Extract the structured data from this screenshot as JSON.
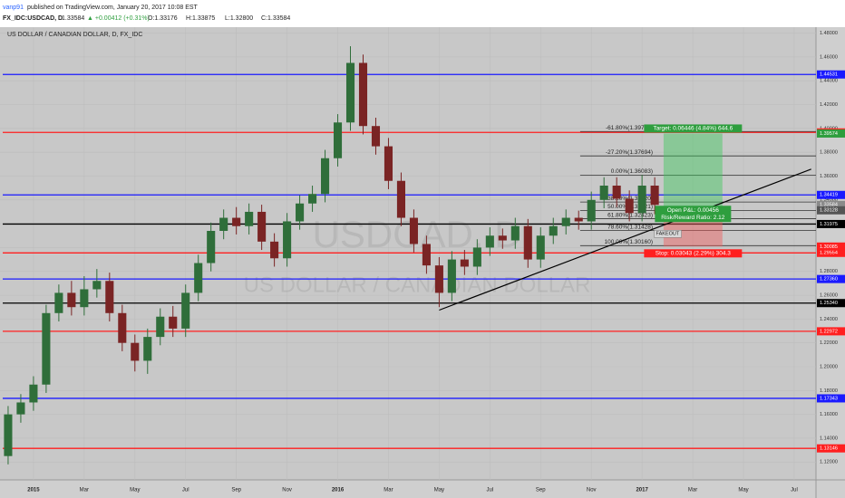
{
  "header": {
    "author": "vanp91",
    "published": "published on TradingView.com, January 20, 2017 10:08 EST",
    "symbol": "FX_IDC:USDCAD, D",
    "last": "1.33584",
    "change": "▲ +0.00412 (+0.31%)",
    "ohlc": [
      "O:1.33176",
      "H:1.33875",
      "L:1.32800",
      "C:1.33584"
    ]
  },
  "chart_data": {
    "type": "candlestick",
    "title": "US DOLLAR / CANADIAN DOLLAR, D, FX_IDC",
    "watermark": [
      "USDCAD, D",
      "US DOLLAR / CANADIAN DOLLAR"
    ],
    "up_color": "#2f6e3a",
    "down_color": "#7a2424",
    "grid": true,
    "candles": {
      "x": [
        -1,
        -0.5,
        0,
        0.5,
        1,
        1.5,
        2,
        2.5,
        3,
        3.5,
        4,
        4.5,
        5,
        5.5,
        6,
        6.5,
        7,
        7.5,
        8,
        8.5,
        9,
        9.5,
        10,
        10.5,
        11,
        11.5,
        12,
        12.5,
        13,
        13.5,
        14,
        14.5,
        15,
        15.5,
        16,
        16.5,
        17,
        17.5,
        18,
        18.5,
        19,
        19.5,
        20,
        20.5,
        21,
        21.5,
        22,
        22.5,
        23,
        23.5,
        24,
        24.5
      ],
      "open": [
        1.125,
        1.16,
        1.17,
        1.185,
        1.245,
        1.262,
        1.25,
        1.265,
        1.272,
        1.245,
        1.22,
        1.205,
        1.225,
        1.242,
        1.232,
        1.262,
        1.287,
        1.314,
        1.325,
        1.318,
        1.33,
        1.305,
        1.291,
        1.322,
        1.337,
        1.345,
        1.375,
        1.405,
        1.455,
        1.402,
        1.385,
        1.356,
        1.325,
        1.303,
        1.285,
        1.262,
        1.29,
        1.284,
        1.3,
        1.31,
        1.306,
        1.318,
        1.29,
        1.31,
        1.318,
        1.325,
        1.322,
        1.34,
        1.352,
        1.341,
        1.329,
        1.352
      ],
      "high": [
        1.167,
        1.177,
        1.192,
        1.252,
        1.269,
        1.272,
        1.276,
        1.282,
        1.279,
        1.252,
        1.227,
        1.232,
        1.249,
        1.251,
        1.269,
        1.294,
        1.321,
        1.332,
        1.334,
        1.337,
        1.336,
        1.312,
        1.329,
        1.344,
        1.352,
        1.382,
        1.412,
        1.469,
        1.462,
        1.409,
        1.392,
        1.363,
        1.332,
        1.31,
        1.292,
        1.297,
        1.298,
        1.307,
        1.317,
        1.316,
        1.325,
        1.324,
        1.317,
        1.325,
        1.332,
        1.331,
        1.347,
        1.359,
        1.359,
        1.348,
        1.361,
        1.359
      ],
      "low": [
        1.118,
        1.153,
        1.163,
        1.178,
        1.238,
        1.243,
        1.243,
        1.258,
        1.238,
        1.213,
        1.196,
        1.194,
        1.218,
        1.225,
        1.225,
        1.255,
        1.28,
        1.307,
        1.311,
        1.311,
        1.298,
        1.284,
        1.284,
        1.315,
        1.33,
        1.338,
        1.368,
        1.398,
        1.395,
        1.378,
        1.349,
        1.318,
        1.296,
        1.278,
        1.25,
        1.255,
        1.277,
        1.277,
        1.293,
        1.299,
        1.299,
        1.283,
        1.283,
        1.303,
        1.311,
        1.315,
        1.315,
        1.333,
        1.334,
        1.322,
        1.322,
        1.328
      ],
      "close": [
        1.16,
        1.17,
        1.185,
        1.245,
        1.262,
        1.25,
        1.265,
        1.272,
        1.245,
        1.22,
        1.205,
        1.225,
        1.242,
        1.232,
        1.262,
        1.287,
        1.314,
        1.325,
        1.318,
        1.33,
        1.305,
        1.291,
        1.322,
        1.337,
        1.345,
        1.375,
        1.405,
        1.455,
        1.402,
        1.385,
        1.356,
        1.325,
        1.303,
        1.285,
        1.262,
        1.29,
        1.284,
        1.3,
        1.31,
        1.306,
        1.318,
        1.29,
        1.31,
        1.318,
        1.325,
        1.322,
        1.34,
        1.352,
        1.341,
        1.329,
        1.352,
        1.33584
      ]
    },
    "xlim": [
      -1.32,
      30.86
    ],
    "xticks": [
      {
        "value": 0,
        "label": "2015"
      },
      {
        "value": 2,
        "label": "Mar"
      },
      {
        "value": 4,
        "label": "May"
      },
      {
        "value": 6,
        "label": "Jul"
      },
      {
        "value": 8,
        "label": "Sep"
      },
      {
        "value": 10,
        "label": "Nov"
      },
      {
        "value": 12,
        "label": "2016"
      },
      {
        "value": 14,
        "label": "Mar"
      },
      {
        "value": 16,
        "label": "May"
      },
      {
        "value": 18,
        "label": "Jul"
      },
      {
        "value": 20,
        "label": "Sep"
      },
      {
        "value": 22,
        "label": "Nov"
      },
      {
        "value": 24,
        "label": "2017"
      },
      {
        "value": 26,
        "label": "Mar"
      },
      {
        "value": 28,
        "label": "May"
      },
      {
        "value": 30,
        "label": "Jul"
      }
    ],
    "ylim": [
      1.105,
      1.485
    ],
    "yticks": [
      {
        "value": 1.12,
        "label": "1.12000"
      },
      {
        "value": 1.14,
        "label": "1.14000"
      },
      {
        "value": 1.16,
        "label": "1.16000"
      },
      {
        "value": 1.18,
        "label": "1.18000"
      },
      {
        "value": 1.2,
        "label": "1.20000"
      },
      {
        "value": 1.22,
        "label": "1.22000"
      },
      {
        "value": 1.24,
        "label": "1.24000"
      },
      {
        "value": 1.26,
        "label": "1.26000"
      },
      {
        "value": 1.28,
        "label": "1.28000"
      },
      {
        "value": 1.3,
        "label": "1.30000"
      },
      {
        "value": 1.32,
        "label": "1.32000"
      },
      {
        "value": 1.34,
        "label": "1.34000"
      },
      {
        "value": 1.36,
        "label": "1.36000"
      },
      {
        "value": 1.38,
        "label": "1.38000"
      },
      {
        "value": 1.4,
        "label": "1.40000"
      },
      {
        "value": 1.42,
        "label": "1.42000"
      },
      {
        "value": 1.44,
        "label": "1.44000"
      },
      {
        "value": 1.46,
        "label": "1.46000"
      },
      {
        "value": 1.48,
        "label": "1.48000"
      }
    ],
    "hlines": [
      {
        "value": 1.44531,
        "label": "1.44531",
        "color": "#1a1aff"
      },
      {
        "value": 1.39666,
        "label": "1.39666",
        "color": "#ff1f1f"
      },
      {
        "value": 1.34419,
        "label": "1.34419",
        "color": "#1a1aff"
      },
      {
        "value": 1.31975,
        "label": "1.31975",
        "color": "#000000"
      },
      {
        "value": 1.29554,
        "label": "1.29554",
        "color": "#ff1f1f"
      },
      {
        "value": 1.2736,
        "label": "1.27360",
        "color": "#1a1aff"
      },
      {
        "value": 1.2534,
        "label": "1.25340",
        "color": "#000000"
      },
      {
        "value": 1.22972,
        "label": "1.22972",
        "color": "#ff1f1f"
      },
      {
        "value": 1.17343,
        "label": "1.17343",
        "color": "#1a1aff"
      },
      {
        "value": 1.13146,
        "label": "1.13146",
        "color": "#ff1f1f"
      }
    ],
    "axis_labels": [
      {
        "value": 1.39574,
        "label": "1.39574",
        "color": "#2e9e3e"
      },
      {
        "value": 1.33584,
        "label": "1.33584",
        "color": "#8a8a8a"
      },
      {
        "value": 1.33128,
        "label": "1.33128",
        "color": "#555555"
      },
      {
        "value": 1.30085,
        "label": "1.30085",
        "color": "#ff1f1f"
      }
    ],
    "fib": {
      "x": 21.56,
      "levels": [
        {
          "value": 1.39743,
          "label": "-61.80%(1.39743)"
        },
        {
          "value": 1.37694,
          "label": "-27.20%(1.37694)"
        },
        {
          "value": 1.36083,
          "label": "0.00%(1.36083)"
        },
        {
          "value": 1.3382,
          "label": "38.20%(1.33820)"
        },
        {
          "value": 1.33121,
          "label": "50.00%(1.33121)"
        },
        {
          "value": 1.32423,
          "label": "61.80%(1.32423)"
        },
        {
          "value": 1.31428,
          "label": "78.60%(1.31428)"
        },
        {
          "value": 1.3016,
          "label": "100.00%(1.30160)"
        }
      ]
    },
    "trendline": {
      "x": [
        16.0,
        30.67
      ],
      "y": [
        1.2475,
        1.3658
      ]
    },
    "position": {
      "x": [
        24.85,
        27.17
      ],
      "entry": 1.33128,
      "target": 1.39574,
      "stop": 1.30085,
      "target_label": "Target: 0.06446 (4.84%) 644.6",
      "pnl_label": "Open P&L: 0.00456",
      "ratio_label": "Risk/Reward Ratio: 2.12",
      "stop_label": "Stop: 0.03043 (2.29%) 304.3"
    },
    "note": {
      "x": 24.55,
      "y": 1.3115,
      "label": "FAKEOUT"
    }
  }
}
